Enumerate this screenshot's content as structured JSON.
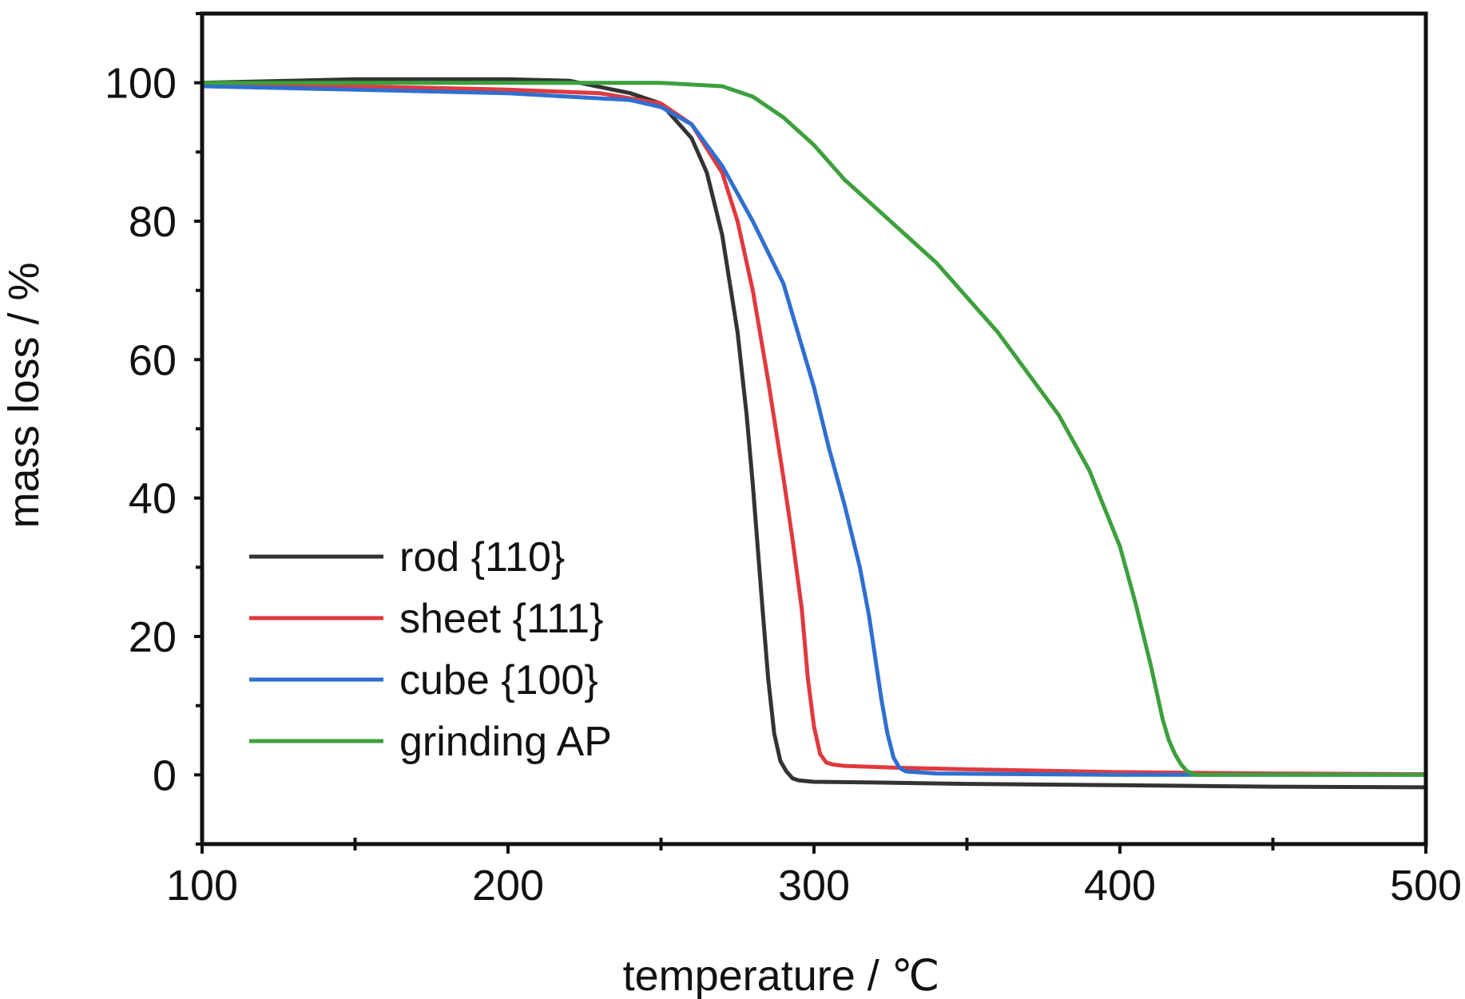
{
  "chart_data": {
    "type": "line",
    "xlabel": "temperature / ℃",
    "ylabel": "mass loss / %",
    "xlim": [
      100,
      500
    ],
    "ylim": [
      -10,
      110
    ],
    "x_ticks": [
      100,
      200,
      300,
      400,
      500
    ],
    "x_tick_labels": [
      "100",
      "200",
      "300",
      "400",
      "500"
    ],
    "y_ticks": [
      0,
      20,
      40,
      60,
      80,
      100
    ],
    "y_tick_labels": [
      "0",
      "20",
      "40",
      "60",
      "80",
      "100"
    ],
    "grid": false,
    "legend_position": "lower-left",
    "series": [
      {
        "name": "rod {110}",
        "color": "#333333",
        "x": [
          100,
          150,
          200,
          220,
          240,
          250,
          260,
          265,
          270,
          275,
          278,
          280,
          283,
          285,
          287,
          289,
          291,
          293,
          295,
          300,
          320,
          350,
          400,
          450,
          500
        ],
        "y": [
          100,
          100.5,
          100.5,
          100.3,
          98.5,
          97,
          92,
          87,
          78,
          64,
          52,
          42,
          25,
          14,
          6,
          2,
          0.5,
          -0.5,
          -0.8,
          -1,
          -1.1,
          -1.3,
          -1.5,
          -1.7,
          -1.8
        ]
      },
      {
        "name": "sheet {111}",
        "color": "#e0393e",
        "x": [
          100,
          150,
          200,
          230,
          250,
          260,
          270,
          275,
          280,
          285,
          290,
          293,
          296,
          298,
          300,
          302,
          304,
          306,
          310,
          330,
          350,
          400,
          450,
          500
        ],
        "y": [
          100,
          99.5,
          99,
          98.5,
          97,
          94,
          87,
          80,
          70,
          57,
          43,
          34,
          24,
          14,
          7,
          3,
          1.8,
          1.5,
          1.3,
          1,
          0.8,
          0.4,
          0.2,
          0.1
        ]
      },
      {
        "name": "cube {100}",
        "color": "#2f6fd0",
        "x": [
          100,
          150,
          200,
          240,
          250,
          260,
          270,
          280,
          290,
          300,
          305,
          310,
          315,
          318,
          320,
          322,
          324,
          326,
          328,
          330,
          340,
          400,
          450,
          500
        ],
        "y": [
          99.5,
          99,
          98.5,
          97.5,
          96.5,
          94,
          88,
          80,
          71,
          56,
          47,
          39,
          30,
          23,
          17,
          11,
          6,
          2.5,
          1,
          0.5,
          0.2,
          0,
          0,
          0
        ]
      },
      {
        "name": "grinding AP",
        "color": "#3da03d",
        "x": [
          100,
          200,
          250,
          270,
          280,
          290,
          300,
          310,
          320,
          340,
          360,
          380,
          390,
          400,
          405,
          410,
          414,
          416,
          418,
          420,
          422,
          425,
          430,
          450,
          500
        ],
        "y": [
          100,
          100,
          100,
          99.5,
          98,
          95,
          91,
          86,
          82,
          74,
          64,
          52,
          44,
          33,
          25,
          16,
          8,
          5,
          3,
          1.5,
          0.5,
          0,
          0,
          0,
          0
        ]
      }
    ]
  }
}
